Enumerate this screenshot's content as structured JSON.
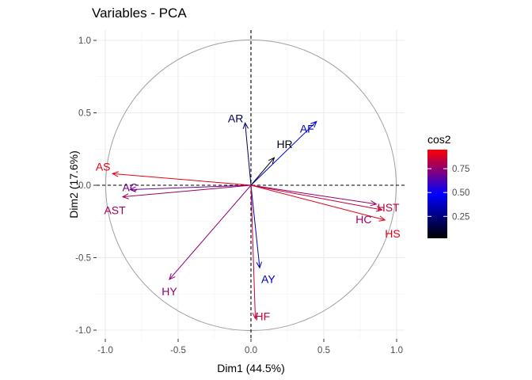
{
  "chart_data": {
    "type": "scatter",
    "subtype": "pca-variable-correlation-circle",
    "title": "Variables - PCA",
    "xlabel": "Dim1 (44.5%)",
    "ylabel": "Dim2 (17.6%)",
    "xlim": [
      -1.05,
      1.05
    ],
    "ylim": [
      -1.05,
      1.05
    ],
    "xticks": [
      -1.0,
      -0.5,
      0.0,
      0.5,
      1.0
    ],
    "yticks": [
      -1.0,
      -0.5,
      0.0,
      0.5,
      1.0
    ],
    "xtick_labels": [
      "-1.0",
      "-0.5",
      "0.0",
      "0.5",
      "1.0"
    ],
    "ytick_labels": [
      "-1.0",
      "-0.5",
      "0.0",
      "0.5",
      "1.0"
    ],
    "grid": true,
    "unit_circle": true,
    "reference_lines": "dashed at x=0 and y=0",
    "color_variable": "cos2",
    "legend": {
      "title": "cos2",
      "position": "right",
      "ticks": [
        0.25,
        0.5,
        0.75
      ],
      "tick_labels": [
        "0.25",
        "0.50",
        "0.75"
      ],
      "range": [
        0.02,
        0.95
      ],
      "gradient": [
        "#000000",
        "#0000ff",
        "#ff0000"
      ]
    },
    "variables": [
      {
        "name": "AS",
        "x": -0.95,
        "y": 0.08,
        "cos2": 0.91
      },
      {
        "name": "AC",
        "x": -0.83,
        "y": -0.03,
        "cos2": 0.69
      },
      {
        "name": "AST",
        "x": -0.88,
        "y": -0.08,
        "cos2": 0.78
      },
      {
        "name": "AR",
        "x": -0.04,
        "y": 0.43,
        "cos2": 0.19
      },
      {
        "name": "AF",
        "x": 0.45,
        "y": 0.44,
        "cos2": 0.4
      },
      {
        "name": "HR",
        "x": 0.16,
        "y": 0.19,
        "cos2": 0.06
      },
      {
        "name": "HST",
        "x": 0.9,
        "y": -0.17,
        "cos2": 0.84
      },
      {
        "name": "HC",
        "x": 0.86,
        "y": -0.13,
        "cos2": 0.76
      },
      {
        "name": "HS",
        "x": 0.92,
        "y": -0.24,
        "cos2": 0.9
      },
      {
        "name": "AY",
        "x": 0.06,
        "y": -0.57,
        "cos2": 0.33
      },
      {
        "name": "HY",
        "x": -0.56,
        "y": -0.65,
        "cos2": 0.74
      },
      {
        "name": "HF",
        "x": 0.03,
        "y": -0.92,
        "cos2": 0.85
      }
    ]
  }
}
